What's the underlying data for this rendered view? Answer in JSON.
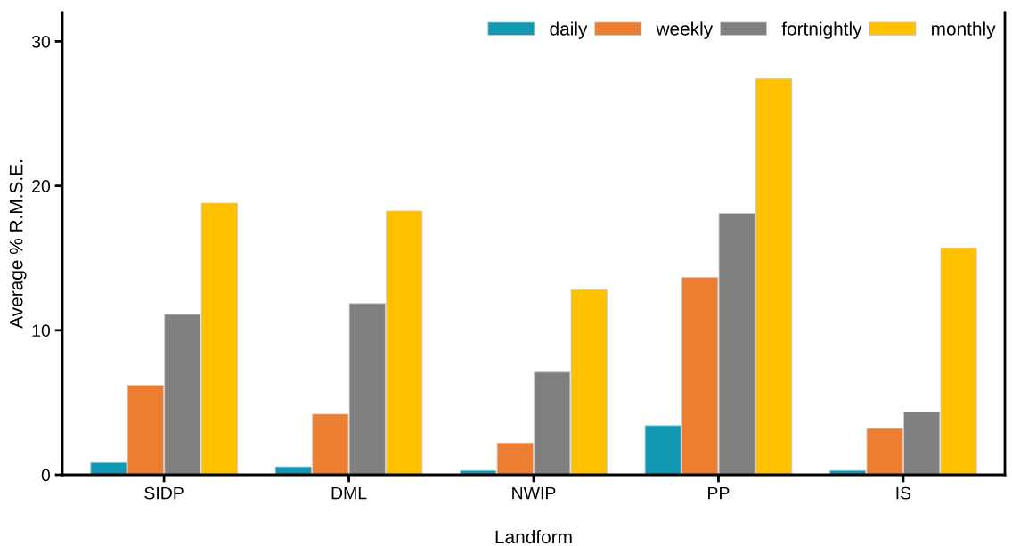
{
  "chart_data": {
    "type": "bar",
    "xlabel": "Landform",
    "ylabel": "Average % R.M.S.E.",
    "categories": [
      "SIDP",
      "DML",
      "NWIP",
      "PP",
      "IS"
    ],
    "series": [
      {
        "name": "daily",
        "color": "#1199b4",
        "values": [
          0.85,
          0.55,
          0.3,
          3.4,
          0.3
        ]
      },
      {
        "name": "weekly",
        "color": "#ed7d31",
        "values": [
          6.2,
          4.2,
          2.2,
          13.65,
          3.2
        ]
      },
      {
        "name": "fortnightly",
        "color": "#808080",
        "values": [
          11.1,
          11.85,
          7.1,
          18.1,
          4.35
        ]
      },
      {
        "name": "monthly",
        "color": "#ffc000",
        "values": [
          18.8,
          18.25,
          12.8,
          27.4,
          15.7
        ]
      }
    ],
    "ylim": [
      0,
      32
    ],
    "yticks": [
      0,
      10,
      20,
      30
    ],
    "grid": false,
    "legend": "top right"
  }
}
